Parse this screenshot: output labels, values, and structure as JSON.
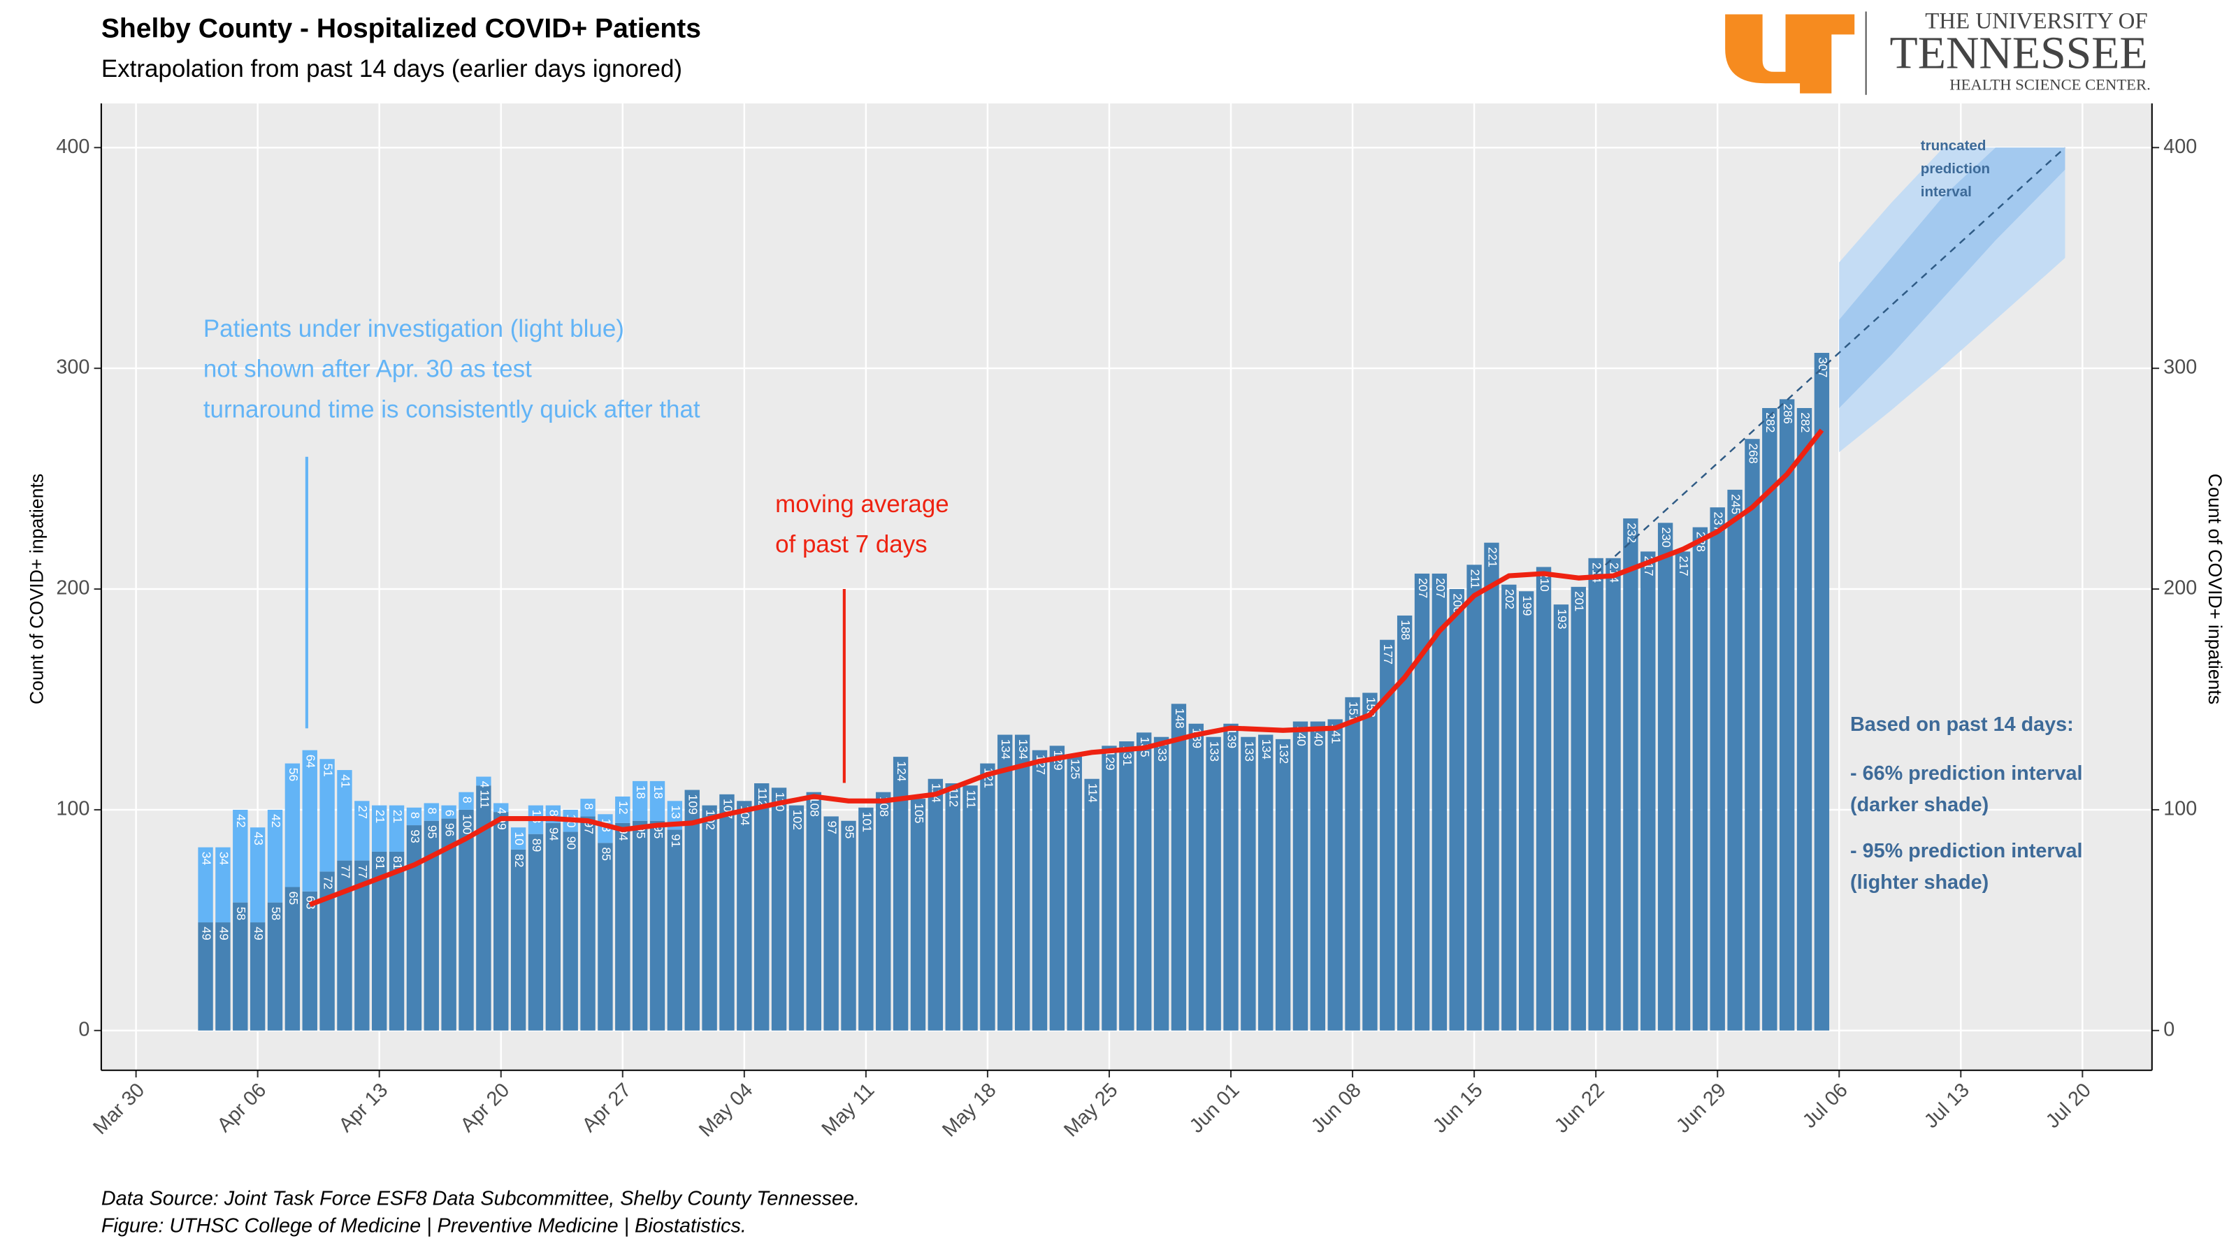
{
  "chart_data": {
    "type": "bar",
    "stacked": true,
    "title": "Shelby County - Hospitalized COVID+ Patients",
    "subtitle": "Extrapolation from past 14 days (earlier days ignored)",
    "y_label": "Count of COVID+ inpatients",
    "y2_label": "Count of COVID+ inpatients",
    "categories": [
      "Apr 03",
      "Apr 04",
      "Apr 05",
      "Apr 06",
      "Apr 07",
      "Apr 08",
      "Apr 09",
      "Apr 10",
      "Apr 11",
      "Apr 12",
      "Apr 13",
      "Apr 14",
      "Apr 15",
      "Apr 16",
      "Apr 17",
      "Apr 18",
      "Apr 19",
      "Apr 20",
      "Apr 21",
      "Apr 22",
      "Apr 23",
      "Apr 24",
      "Apr 25",
      "Apr 26",
      "Apr 27",
      "Apr 28",
      "Apr 29",
      "Apr 30",
      "May 01",
      "May 02",
      "May 03",
      "May 04",
      "May 05",
      "May 06",
      "May 07",
      "May 08",
      "May 09",
      "May 10",
      "May 11",
      "May 12",
      "May 13",
      "May 14",
      "May 15",
      "May 16",
      "May 17",
      "May 18",
      "May 19",
      "May 20",
      "May 21",
      "May 22",
      "May 23",
      "May 24",
      "May 25",
      "May 26",
      "May 27",
      "May 28",
      "May 29",
      "May 30",
      "May 31",
      "Jun 01",
      "Jun 02",
      "Jun 03",
      "Jun 04",
      "Jun 05",
      "Jun 06",
      "Jun 07",
      "Jun 08",
      "Jun 09",
      "Jun 10",
      "Jun 11",
      "Jun 12",
      "Jun 13",
      "Jun 14",
      "Jun 15",
      "Jun 16",
      "Jun 17",
      "Jun 18",
      "Jun 19",
      "Jun 20",
      "Jun 21",
      "Jun 22",
      "Jun 23",
      "Jun 24",
      "Jun 25",
      "Jun 26",
      "Jun 27",
      "Jun 28",
      "Jun 29",
      "Jun 30",
      "Jul 01",
      "Jul 02",
      "Jul 03",
      "Jul 04",
      "Jul 05"
    ],
    "series": [
      {
        "color": "#4682b4",
        "values": [
          49,
          49,
          58,
          49,
          58,
          65,
          63,
          72,
          77,
          77,
          81,
          81,
          93,
          95,
          96,
          100,
          111,
          99,
          82,
          89,
          94,
          90,
          97,
          85,
          94,
          95,
          95,
          91,
          109,
          102,
          107,
          104,
          112,
          110,
          102,
          108,
          97,
          95,
          101,
          108,
          124,
          105,
          114,
          112,
          111,
          121,
          134,
          134,
          127,
          129,
          125,
          114,
          129,
          131,
          135,
          133,
          148,
          139,
          133,
          139,
          133,
          134,
          132,
          140,
          140,
          141,
          151,
          153,
          177,
          188,
          207,
          207,
          200,
          211,
          221,
          202,
          199,
          210,
          193,
          201,
          214,
          214,
          232,
          217,
          230,
          217,
          228,
          237,
          245,
          268,
          282,
          286,
          282,
          307
        ]
      },
      {
        "color": "#63b4f6",
        "values": [
          34,
          34,
          42,
          43,
          42,
          56,
          64,
          51,
          41,
          27,
          21,
          21,
          8,
          8,
          6,
          8,
          4,
          4,
          10,
          13,
          8,
          10,
          8,
          13,
          12,
          18,
          18,
          13,
          null,
          null,
          null,
          null,
          null,
          null,
          null,
          null,
          null,
          null,
          null,
          null,
          null,
          null,
          null,
          null,
          null,
          null,
          null,
          null,
          null,
          null,
          null,
          null,
          null,
          null,
          null,
          null,
          null,
          null,
          null,
          null,
          null,
          null,
          null,
          null,
          null,
          null,
          null,
          null,
          null,
          null,
          null,
          null,
          null,
          null,
          null,
          null,
          null,
          null,
          null,
          null,
          null,
          null,
          null,
          null,
          null,
          null,
          null,
          null,
          null,
          null,
          null,
          null,
          null,
          null
        ]
      }
    ],
    "moving_average": {
      "color": "#ee2211",
      "x": [
        "Apr 09",
        "Apr 12",
        "Apr 15",
        "Apr 18",
        "Apr 20",
        "Apr 23",
        "Apr 25",
        "Apr 27",
        "Apr 29",
        "May 01",
        "May 03",
        "May 06",
        "May 08",
        "May 10",
        "May 12",
        "May 15",
        "May 18",
        "May 21",
        "May 24",
        "May 27",
        "May 30",
        "Jun 01",
        "Jun 04",
        "Jun 07",
        "Jun 09",
        "Jun 11",
        "Jun 13",
        "Jun 15",
        "Jun 17",
        "Jun 19",
        "Jun 21",
        "Jun 23",
        "Jun 25",
        "Jun 27",
        "Jun 29",
        "Jul 01",
        "Jul 03",
        "Jul 05"
      ],
      "values": [
        57,
        66,
        75,
        87,
        96,
        96,
        95,
        91,
        93,
        94,
        98,
        103,
        106,
        104,
        104,
        107,
        116,
        122,
        126,
        128,
        134,
        137,
        136,
        137,
        143,
        160,
        181,
        197,
        206,
        207,
        205,
        206,
        212,
        218,
        226,
        237,
        252,
        272
      ]
    },
    "prediction": {
      "color": "#2f5b85",
      "x": [
        "Jun 22",
        "Jul 19"
      ],
      "values": [
        207,
        400
      ]
    },
    "intervals": [
      {
        "color": "#c4dcf4",
        "x": [
          "Jul 06",
          "Jul 09",
          "Jul 12",
          "Jul 15",
          "Jul 19"
        ],
        "lower": [
          262,
          281,
          301,
          322,
          350
        ],
        "upper": [
          348,
          375,
          400,
          400,
          400
        ]
      },
      {
        "color": "#a3c9ef",
        "x": [
          "Jul 06",
          "Jul 09",
          "Jul 12",
          "Jul 15",
          "Jul 19"
        ],
        "lower": [
          282,
          306,
          332,
          358,
          390
        ],
        "upper": [
          322,
          350,
          378,
          400,
          400
        ]
      }
    ],
    "xlim": [
      "Mar 28",
      "Jul 24"
    ],
    "xticks": [
      "Mar 30",
      "Apr 06",
      "Apr 13",
      "Apr 20",
      "Apr 27",
      "May 04",
      "May 11",
      "May 18",
      "May 25",
      "Jun 01",
      "Jun 08",
      "Jun 15",
      "Jun 22",
      "Jun 29",
      "Jul 06",
      "Jul 13",
      "Jul 20"
    ],
    "ylim": [
      -18,
      420
    ],
    "yticks": [
      0,
      100,
      200,
      300,
      400
    ],
    "y2lim": [
      -18,
      420
    ],
    "y2ticks": [
      0,
      100,
      200,
      300,
      400
    ],
    "grid": true,
    "annotations": {
      "pui": {
        "color": "#63b4f6",
        "lines": [
          "Patients under investigation (light blue)",
          "not shown after Apr. 30 as test",
          "turnaround time is consistently quick after that"
        ]
      },
      "ma": {
        "color": "#ee2211",
        "lines": [
          "moving average",
          "of past 7 days"
        ]
      },
      "truncated": [
        "truncated",
        "prediction",
        "interval"
      ],
      "intervals_note": {
        "color": "#3d6a98",
        "lines": [
          "Based on past 14 days:",
          "- 66% prediction interval",
          "(darker shade)",
          "- 95% prediction interval",
          "(lighter shade)"
        ]
      }
    },
    "footer": [
      "Data Source: Joint Task Force ESF8 Data Subcommittee, Shelby County Tennessee.",
      "Figure: UTHSC College of Medicine | Preventive Medicine | Biostatistics."
    ],
    "logo": [
      "THE UNIVERSITY OF",
      "TENNESSEE",
      "HEALTH SCIENCE CENTER."
    ]
  }
}
